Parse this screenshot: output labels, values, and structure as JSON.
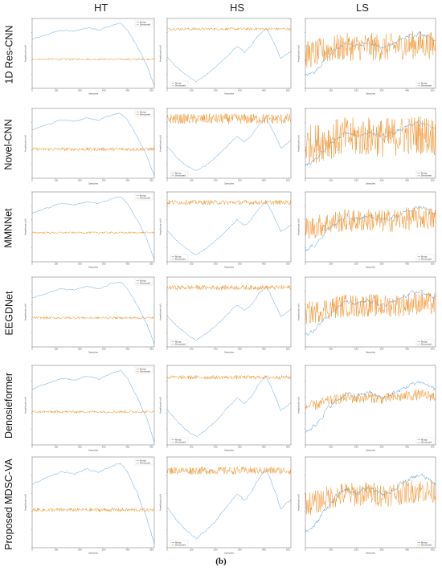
{
  "figure_label": "(b)",
  "columns": [
    "HT",
    "HS",
    "LS"
  ],
  "rows": [
    "1D Res-CNN",
    "Novel-CNN",
    "MMNNet",
    "EEGDNet",
    "Denosieformer",
    "Proposed MDSC-VA"
  ],
  "colors": {
    "noisy": "#5b9fd6",
    "denoised": "#f0922c"
  },
  "chart_data": {
    "type": "line",
    "layout": "6x3 grid of small line plots",
    "legend": {
      "entries": [
        "Noisy",
        "Denoised"
      ],
      "placement_ht": "top-right",
      "placement_hs": "bottom-left",
      "placement_ls": "bottom-right"
    },
    "xlabel": "Samples",
    "ylabel": "Amplitude (uV)",
    "x_ticks": [
      0,
      100,
      200,
      300,
      400,
      500
    ],
    "xlim": [
      0,
      512
    ],
    "columns": {
      "HT": {
        "ylim": [
          -3,
          3
        ],
        "noisy_shape": [
          {
            "x": 0,
            "y": 1.2
          },
          {
            "x": 60,
            "y": 1.6
          },
          {
            "x": 120,
            "y": 2.0
          },
          {
            "x": 180,
            "y": 1.9
          },
          {
            "x": 230,
            "y": 2.2
          },
          {
            "x": 280,
            "y": 2.0
          },
          {
            "x": 330,
            "y": 2.4
          },
          {
            "x": 370,
            "y": 2.6
          },
          {
            "x": 400,
            "y": 2.0
          },
          {
            "x": 440,
            "y": 0.6
          },
          {
            "x": 480,
            "y": -1.0
          },
          {
            "x": 512,
            "y": -2.8
          }
        ],
        "denoised_level": -0.5
      },
      "HS": {
        "ylim": [
          -3,
          3
        ],
        "noisy_shape": [
          {
            "x": 0,
            "y": -0.3
          },
          {
            "x": 40,
            "y": -1.2
          },
          {
            "x": 80,
            "y": -1.9
          },
          {
            "x": 120,
            "y": -2.4
          },
          {
            "x": 160,
            "y": -1.9
          },
          {
            "x": 200,
            "y": -1.2
          },
          {
            "x": 250,
            "y": -0.2
          },
          {
            "x": 290,
            "y": 0.6
          },
          {
            "x": 320,
            "y": 0.1
          },
          {
            "x": 350,
            "y": 0.7
          },
          {
            "x": 380,
            "y": 1.6
          },
          {
            "x": 410,
            "y": 2.2
          },
          {
            "x": 440,
            "y": 1.0
          },
          {
            "x": 470,
            "y": -0.4
          },
          {
            "x": 512,
            "y": 0.2
          }
        ],
        "denoised_level": 2.1
      },
      "LS": {
        "ylim": [
          -3,
          3
        ],
        "noisy_shape": [
          {
            "x": 0,
            "y": -2.0
          },
          {
            "x": 40,
            "y": -1.5
          },
          {
            "x": 80,
            "y": -0.4
          },
          {
            "x": 120,
            "y": 0.3
          },
          {
            "x": 160,
            "y": 0.9
          },
          {
            "x": 200,
            "y": 0.6
          },
          {
            "x": 250,
            "y": 1.0
          },
          {
            "x": 300,
            "y": 0.5
          },
          {
            "x": 350,
            "y": 0.9
          },
          {
            "x": 400,
            "y": 1.4
          },
          {
            "x": 450,
            "y": 1.8
          },
          {
            "x": 512,
            "y": 1.2
          }
        ],
        "denoised_level": 0.6
      }
    },
    "series": [
      {
        "row": "1D Res-CNN",
        "HT_amp": 0.08,
        "HS_amp": 0.12,
        "LS_amp": 1.2
      },
      {
        "row": "Novel-CNN",
        "HT_amp": 0.15,
        "HS_amp": 0.45,
        "LS_amp": 1.7
      },
      {
        "row": "MMNNet",
        "HT_amp": 0.08,
        "HS_amp": 0.2,
        "LS_amp": 1.0
      },
      {
        "row": "EEGDNet",
        "HT_amp": 0.1,
        "HS_amp": 0.2,
        "LS_amp": 1.0
      },
      {
        "row": "Denosieformer",
        "HT_amp": 0.1,
        "HS_amp": 0.15,
        "LS_amp": 0.4
      },
      {
        "row": "Proposed MDSC-VA",
        "HT_amp": 0.12,
        "HS_amp": 0.25,
        "LS_amp": 0.8
      }
    ]
  }
}
